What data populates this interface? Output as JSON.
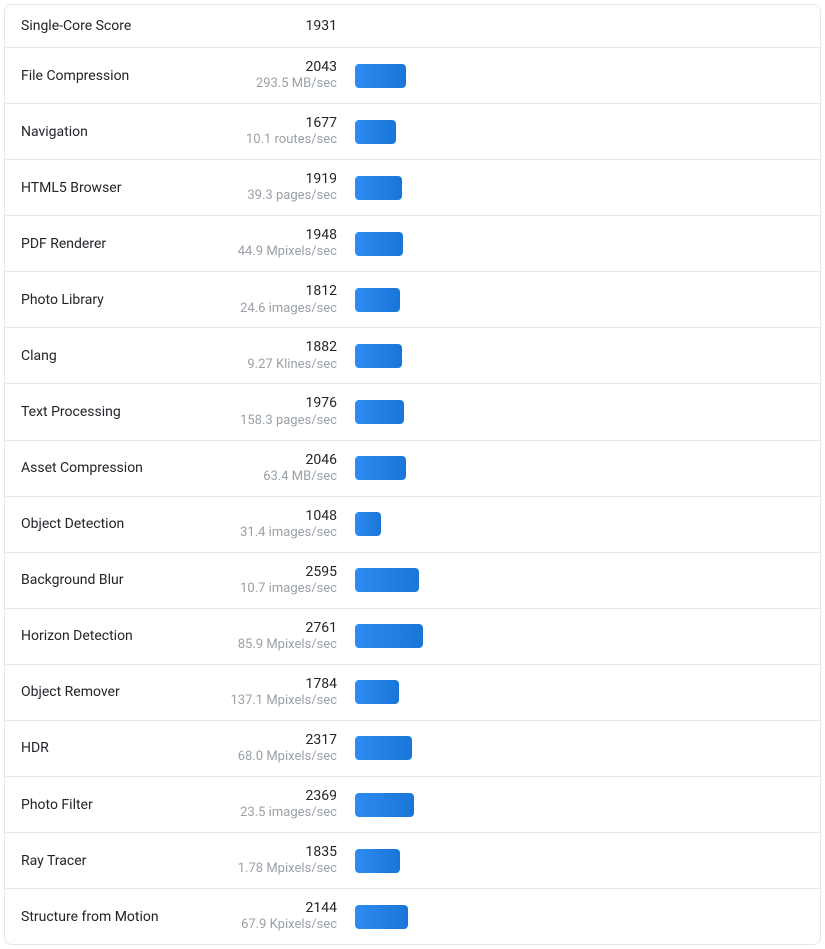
{
  "benchmark": {
    "header": {
      "label": "Single-Core Score",
      "score": "1931"
    },
    "bar_color_start": "#2e8cf0",
    "bar_color_end": "#1976d9",
    "max_score": 18800,
    "tests": [
      {
        "label": "File Compression",
        "score": "2043",
        "sub": "293.5 MB/sec"
      },
      {
        "label": "Navigation",
        "score": "1677",
        "sub": "10.1 routes/sec"
      },
      {
        "label": "HTML5 Browser",
        "score": "1919",
        "sub": "39.3 pages/sec"
      },
      {
        "label": "PDF Renderer",
        "score": "1948",
        "sub": "44.9 Mpixels/sec"
      },
      {
        "label": "Photo Library",
        "score": "1812",
        "sub": "24.6 images/sec"
      },
      {
        "label": "Clang",
        "score": "1882",
        "sub": "9.27 Klines/sec"
      },
      {
        "label": "Text Processing",
        "score": "1976",
        "sub": "158.3 pages/sec"
      },
      {
        "label": "Asset Compression",
        "score": "2046",
        "sub": "63.4 MB/sec"
      },
      {
        "label": "Object Detection",
        "score": "1048",
        "sub": "31.4 images/sec"
      },
      {
        "label": "Background Blur",
        "score": "2595",
        "sub": "10.7 images/sec"
      },
      {
        "label": "Horizon Detection",
        "score": "2761",
        "sub": "85.9 Mpixels/sec"
      },
      {
        "label": "Object Remover",
        "score": "1784",
        "sub": "137.1 Mpixels/sec"
      },
      {
        "label": "HDR",
        "score": "2317",
        "sub": "68.0 Mpixels/sec"
      },
      {
        "label": "Photo Filter",
        "score": "2369",
        "sub": "23.5 images/sec"
      },
      {
        "label": "Ray Tracer",
        "score": "1835",
        "sub": "1.78 Mpixels/sec"
      },
      {
        "label": "Structure from Motion",
        "score": "2144",
        "sub": "67.9 Kpixels/sec"
      }
    ]
  }
}
